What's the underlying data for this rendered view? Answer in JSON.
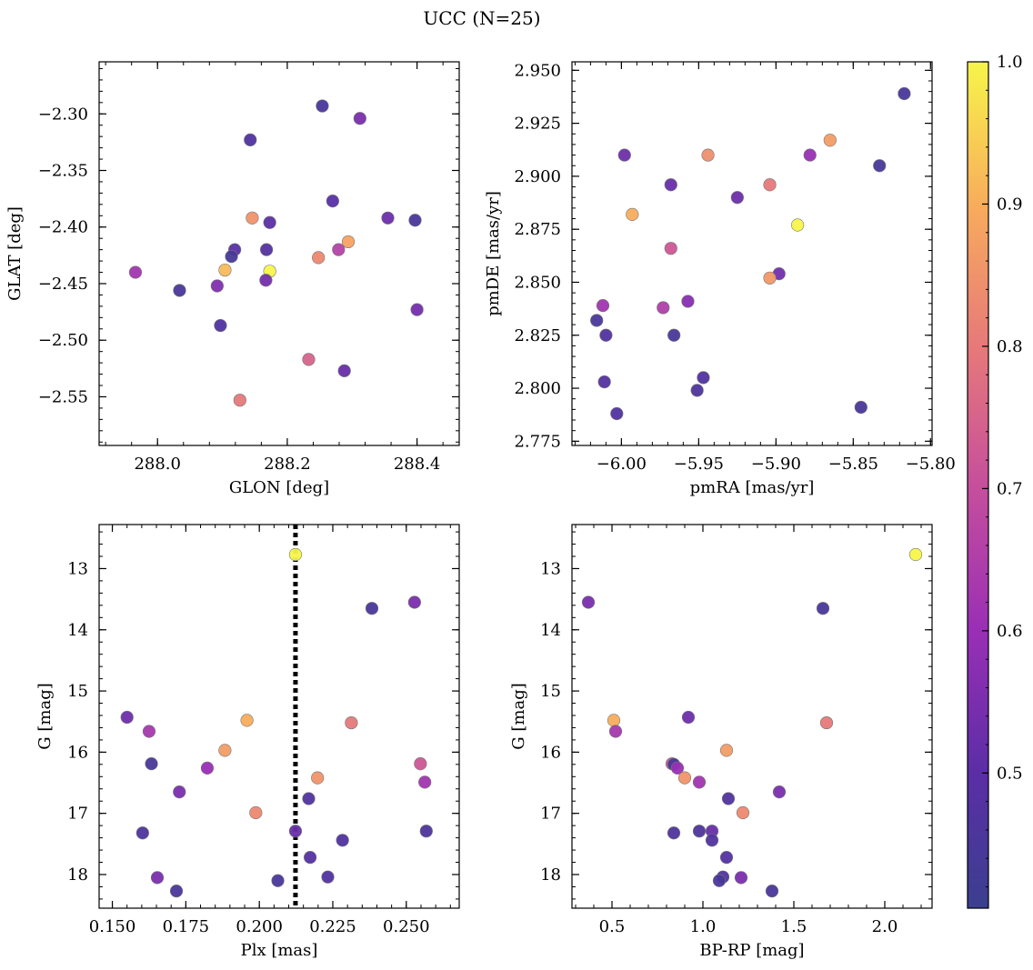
{
  "figure": {
    "title": "UCC (N=25)"
  },
  "colorbar": {
    "colormap": "plasma",
    "range": [
      0.405,
      1.0
    ],
    "ticks": [
      0.5,
      0.6,
      0.7,
      0.8,
      0.9,
      1.0
    ],
    "tick_labels": [
      "0.5",
      "0.6",
      "0.7",
      "0.8",
      "0.9",
      "1.0"
    ]
  },
  "chart_data": [
    {
      "type": "scatter",
      "xlabel": "GLON [deg]",
      "ylabel": "GLAT [deg]",
      "xlim": [
        287.91,
        288.465
      ],
      "ylim": [
        -2.593,
        -2.254
      ],
      "xticks": [
        288.0,
        288.2,
        288.4
      ],
      "xtick_labels": [
        "288.0",
        "288.2",
        "288.4"
      ],
      "yticks": [
        -2.55,
        -2.5,
        -2.45,
        -2.4,
        -2.35,
        -2.3
      ],
      "ytick_labels": [
        "−2.55",
        "−2.50",
        "−2.45",
        "−2.40",
        "−2.35",
        "−2.30"
      ],
      "points": [
        {
          "x": 288.254,
          "y": -2.293,
          "c": 0.45
        },
        {
          "x": 288.312,
          "y": -2.304,
          "c": 0.55
        },
        {
          "x": 288.143,
          "y": -2.323,
          "c": 0.47
        },
        {
          "x": 288.27,
          "y": -2.377,
          "c": 0.49
        },
        {
          "x": 288.146,
          "y": -2.392,
          "c": 0.85
        },
        {
          "x": 288.355,
          "y": -2.392,
          "c": 0.53
        },
        {
          "x": 288.397,
          "y": -2.394,
          "c": 0.45
        },
        {
          "x": 288.173,
          "y": -2.396,
          "c": 0.5
        },
        {
          "x": 288.294,
          "y": -2.413,
          "c": 0.88
        },
        {
          "x": 288.119,
          "y": -2.42,
          "c": 0.49
        },
        {
          "x": 288.168,
          "y": -2.42,
          "c": 0.48
        },
        {
          "x": 288.279,
          "y": -2.42,
          "c": 0.66
        },
        {
          "x": 288.114,
          "y": -2.426,
          "c": 0.44
        },
        {
          "x": 288.248,
          "y": -2.427,
          "c": 0.83
        },
        {
          "x": 288.104,
          "y": -2.438,
          "c": 0.92
        },
        {
          "x": 288.173,
          "y": -2.439,
          "c": 1.0
        },
        {
          "x": 287.966,
          "y": -2.44,
          "c": 0.62
        },
        {
          "x": 288.167,
          "y": -2.447,
          "c": 0.54
        },
        {
          "x": 288.092,
          "y": -2.452,
          "c": 0.56
        },
        {
          "x": 288.034,
          "y": -2.456,
          "c": 0.45
        },
        {
          "x": 288.097,
          "y": -2.487,
          "c": 0.47
        },
        {
          "x": 288.4,
          "y": -2.473,
          "c": 0.54
        },
        {
          "x": 288.233,
          "y": -2.517,
          "c": 0.75
        },
        {
          "x": 288.288,
          "y": -2.527,
          "c": 0.52
        },
        {
          "x": 288.127,
          "y": -2.553,
          "c": 0.8
        }
      ]
    },
    {
      "type": "scatter",
      "xlabel": "pmRA [mas/yr]",
      "ylabel": "pmDE [mas/yr]",
      "xlim": [
        -6.032,
        -5.799
      ],
      "ylim": [
        2.773,
        2.954
      ],
      "xticks": [
        -6.0,
        -5.95,
        -5.9,
        -5.85,
        -5.8
      ],
      "xtick_labels": [
        "−6.00",
        "−5.95",
        "−5.90",
        "−5.85",
        "−5.80"
      ],
      "yticks": [
        2.775,
        2.8,
        2.825,
        2.85,
        2.875,
        2.9,
        2.925,
        2.95
      ],
      "ytick_labels": [
        "2.775",
        "2.800",
        "2.825",
        "2.850",
        "2.875",
        "2.900",
        "2.925",
        "2.950"
      ],
      "points": [
        {
          "x": -5.817,
          "y": 2.939,
          "c": 0.45
        },
        {
          "x": -5.865,
          "y": 2.917,
          "c": 0.87
        },
        {
          "x": -5.998,
          "y": 2.91,
          "c": 0.53
        },
        {
          "x": -5.944,
          "y": 2.91,
          "c": 0.84
        },
        {
          "x": -5.878,
          "y": 2.91,
          "c": 0.6
        },
        {
          "x": -5.833,
          "y": 2.905,
          "c": 0.44
        },
        {
          "x": -5.968,
          "y": 2.896,
          "c": 0.52
        },
        {
          "x": -5.904,
          "y": 2.896,
          "c": 0.8
        },
        {
          "x": -5.925,
          "y": 2.89,
          "c": 0.53
        },
        {
          "x": -5.993,
          "y": 2.882,
          "c": 0.9
        },
        {
          "x": -5.886,
          "y": 2.877,
          "c": 1.0
        },
        {
          "x": -5.968,
          "y": 2.866,
          "c": 0.72
        },
        {
          "x": -5.898,
          "y": 2.854,
          "c": 0.54
        },
        {
          "x": -5.904,
          "y": 2.852,
          "c": 0.86
        },
        {
          "x": -5.957,
          "y": 2.841,
          "c": 0.57
        },
        {
          "x": -6.012,
          "y": 2.839,
          "c": 0.62
        },
        {
          "x": -5.973,
          "y": 2.838,
          "c": 0.65
        },
        {
          "x": -6.016,
          "y": 2.832,
          "c": 0.45
        },
        {
          "x": -6.01,
          "y": 2.825,
          "c": 0.47
        },
        {
          "x": -5.966,
          "y": 2.825,
          "c": 0.45
        },
        {
          "x": -5.947,
          "y": 2.805,
          "c": 0.47
        },
        {
          "x": -6.011,
          "y": 2.803,
          "c": 0.48
        },
        {
          "x": -5.951,
          "y": 2.799,
          "c": 0.46
        },
        {
          "x": -5.845,
          "y": 2.791,
          "c": 0.45
        },
        {
          "x": -6.003,
          "y": 2.788,
          "c": 0.47
        }
      ]
    },
    {
      "type": "scatter",
      "xlabel": "Plx [mas]",
      "ylabel": "G [mag]",
      "xlim": [
        0.1455,
        0.268
      ],
      "ylim": [
        18.55,
        12.28
      ],
      "xticks": [
        0.15,
        0.175,
        0.2,
        0.225,
        0.25
      ],
      "xtick_labels": [
        "0.150",
        "0.175",
        "0.200",
        "0.225",
        "0.250"
      ],
      "yticks": [
        13,
        14,
        15,
        16,
        17,
        18
      ],
      "ytick_labels": [
        "13",
        "14",
        "15",
        "16",
        "17",
        "18"
      ],
      "vline_x": 0.2123,
      "points": [
        {
          "x": 0.2123,
          "y": 12.77,
          "c": 1.0
        },
        {
          "x": 0.2528,
          "y": 13.55,
          "c": 0.55
        },
        {
          "x": 0.2383,
          "y": 13.65,
          "c": 0.45
        },
        {
          "x": 0.155,
          "y": 15.43,
          "c": 0.53
        },
        {
          "x": 0.1958,
          "y": 15.48,
          "c": 0.9
        },
        {
          "x": 0.2313,
          "y": 15.52,
          "c": 0.8
        },
        {
          "x": 0.1625,
          "y": 15.66,
          "c": 0.63
        },
        {
          "x": 0.1883,
          "y": 15.97,
          "c": 0.87
        },
        {
          "x": 0.1633,
          "y": 16.19,
          "c": 0.45
        },
        {
          "x": 0.2548,
          "y": 16.19,
          "c": 0.72
        },
        {
          "x": 0.1823,
          "y": 16.26,
          "c": 0.6
        },
        {
          "x": 0.2198,
          "y": 16.42,
          "c": 0.85
        },
        {
          "x": 0.2563,
          "y": 16.49,
          "c": 0.62
        },
        {
          "x": 0.1728,
          "y": 16.65,
          "c": 0.55
        },
        {
          "x": 0.2168,
          "y": 16.76,
          "c": 0.47
        },
        {
          "x": 0.1988,
          "y": 16.99,
          "c": 0.83
        },
        {
          "x": 0.1603,
          "y": 17.32,
          "c": 0.46
        },
        {
          "x": 0.2123,
          "y": 17.29,
          "c": 0.52
        },
        {
          "x": 0.2568,
          "y": 17.29,
          "c": 0.46
        },
        {
          "x": 0.2283,
          "y": 17.44,
          "c": 0.47
        },
        {
          "x": 0.2173,
          "y": 17.72,
          "c": 0.48
        },
        {
          "x": 0.1653,
          "y": 18.05,
          "c": 0.55
        },
        {
          "x": 0.2233,
          "y": 18.04,
          "c": 0.47
        },
        {
          "x": 0.2063,
          "y": 18.1,
          "c": 0.45
        },
        {
          "x": 0.1718,
          "y": 18.27,
          "c": 0.45
        }
      ]
    },
    {
      "type": "scatter",
      "xlabel": "BP-RP [mag]",
      "ylabel": "G [mag]",
      "xlim": [
        0.28,
        2.26
      ],
      "ylim": [
        18.55,
        12.28
      ],
      "xticks": [
        0.5,
        1.0,
        1.5,
        2.0
      ],
      "xtick_labels": [
        "0.5",
        "1.0",
        "1.5",
        "2.0"
      ],
      "yticks": [
        13,
        14,
        15,
        16,
        17,
        18
      ],
      "ytick_labels": [
        "13",
        "14",
        "15",
        "16",
        "17",
        "18"
      ],
      "points": [
        {
          "x": 2.17,
          "y": 12.77,
          "c": 1.0
        },
        {
          "x": 0.37,
          "y": 13.55,
          "c": 0.55
        },
        {
          "x": 1.66,
          "y": 13.65,
          "c": 0.45
        },
        {
          "x": 0.92,
          "y": 15.43,
          "c": 0.53
        },
        {
          "x": 0.51,
          "y": 15.48,
          "c": 0.9
        },
        {
          "x": 1.68,
          "y": 15.52,
          "c": 0.8
        },
        {
          "x": 0.52,
          "y": 15.66,
          "c": 0.63
        },
        {
          "x": 1.13,
          "y": 15.97,
          "c": 0.87
        },
        {
          "x": 0.83,
          "y": 16.19,
          "c": 0.72
        },
        {
          "x": 0.84,
          "y": 16.2,
          "c": 0.45
        },
        {
          "x": 0.86,
          "y": 16.26,
          "c": 0.6
        },
        {
          "x": 0.9,
          "y": 16.42,
          "c": 0.85
        },
        {
          "x": 0.98,
          "y": 16.49,
          "c": 0.62
        },
        {
          "x": 1.42,
          "y": 16.65,
          "c": 0.55
        },
        {
          "x": 1.14,
          "y": 16.76,
          "c": 0.47
        },
        {
          "x": 1.22,
          "y": 16.99,
          "c": 0.83
        },
        {
          "x": 0.84,
          "y": 17.32,
          "c": 0.46
        },
        {
          "x": 0.98,
          "y": 17.29,
          "c": 0.46
        },
        {
          "x": 1.05,
          "y": 17.29,
          "c": 0.52
        },
        {
          "x": 1.05,
          "y": 17.44,
          "c": 0.47
        },
        {
          "x": 1.13,
          "y": 17.72,
          "c": 0.48
        },
        {
          "x": 1.21,
          "y": 18.05,
          "c": 0.55
        },
        {
          "x": 1.11,
          "y": 18.04,
          "c": 0.47
        },
        {
          "x": 1.09,
          "y": 18.1,
          "c": 0.45
        },
        {
          "x": 1.38,
          "y": 18.27,
          "c": 0.45
        }
      ]
    }
  ]
}
